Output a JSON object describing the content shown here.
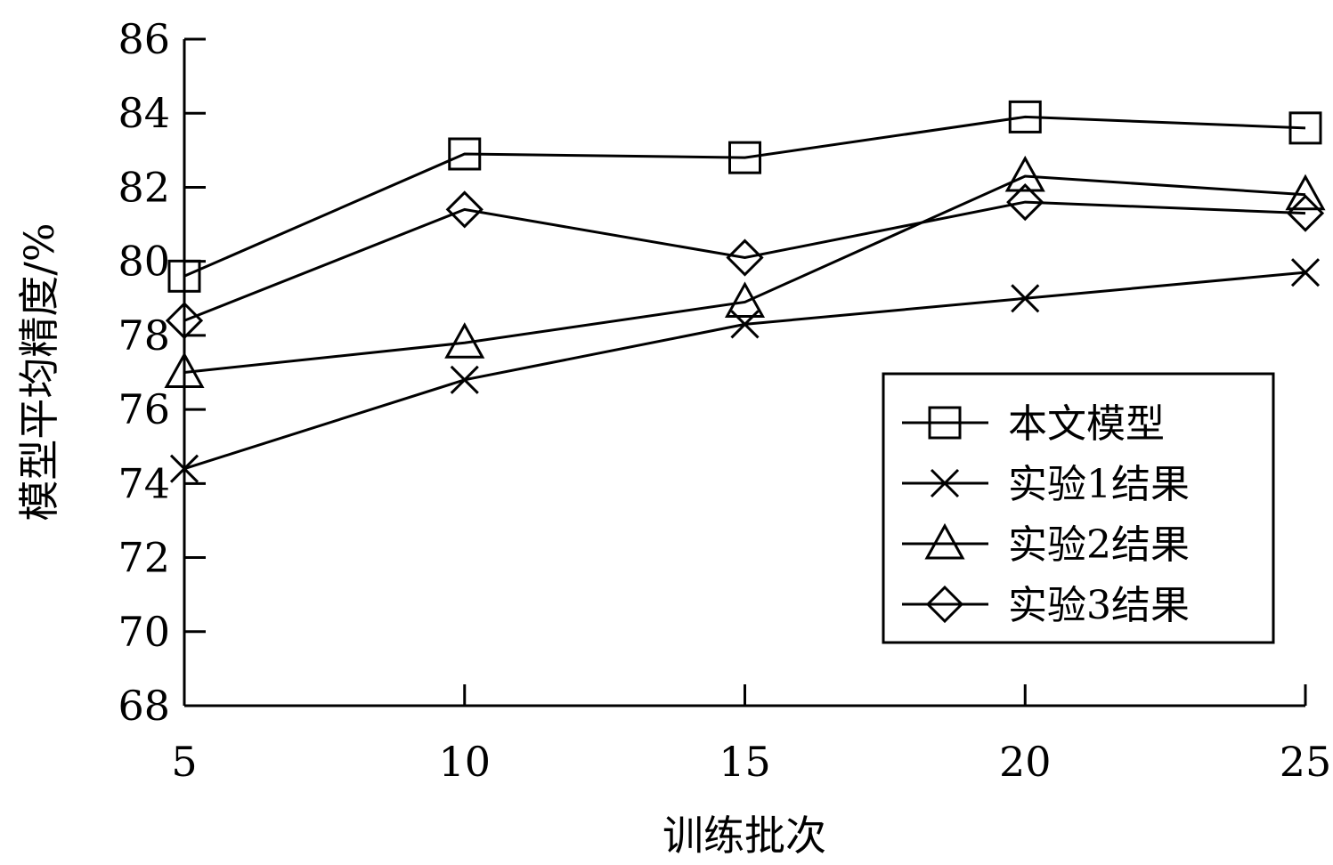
{
  "chart_data": {
    "type": "line",
    "xlabel": "训练批次",
    "ylabel": "模型平均精度/%",
    "x": [
      5,
      10,
      15,
      20,
      25
    ],
    "xlim": [
      5,
      25
    ],
    "ylim": [
      68,
      86
    ],
    "xticks": [
      5,
      10,
      15,
      20,
      25
    ],
    "yticks": [
      68,
      70,
      72,
      74,
      76,
      78,
      80,
      82,
      84,
      86
    ],
    "grid": false,
    "legend_position": "bottom-right",
    "series": [
      {
        "name": "本文模型",
        "marker": "square",
        "values": [
          79.6,
          82.9,
          82.8,
          83.9,
          83.6
        ]
      },
      {
        "name": "实验1结果",
        "marker": "x",
        "values": [
          74.4,
          76.8,
          78.3,
          79.0,
          79.7
        ]
      },
      {
        "name": "实验2结果",
        "marker": "triangle",
        "values": [
          77.0,
          77.8,
          78.9,
          82.3,
          81.8
        ]
      },
      {
        "name": "实验3结果",
        "marker": "diamond",
        "values": [
          78.4,
          81.4,
          80.1,
          81.6,
          81.3
        ]
      }
    ]
  }
}
